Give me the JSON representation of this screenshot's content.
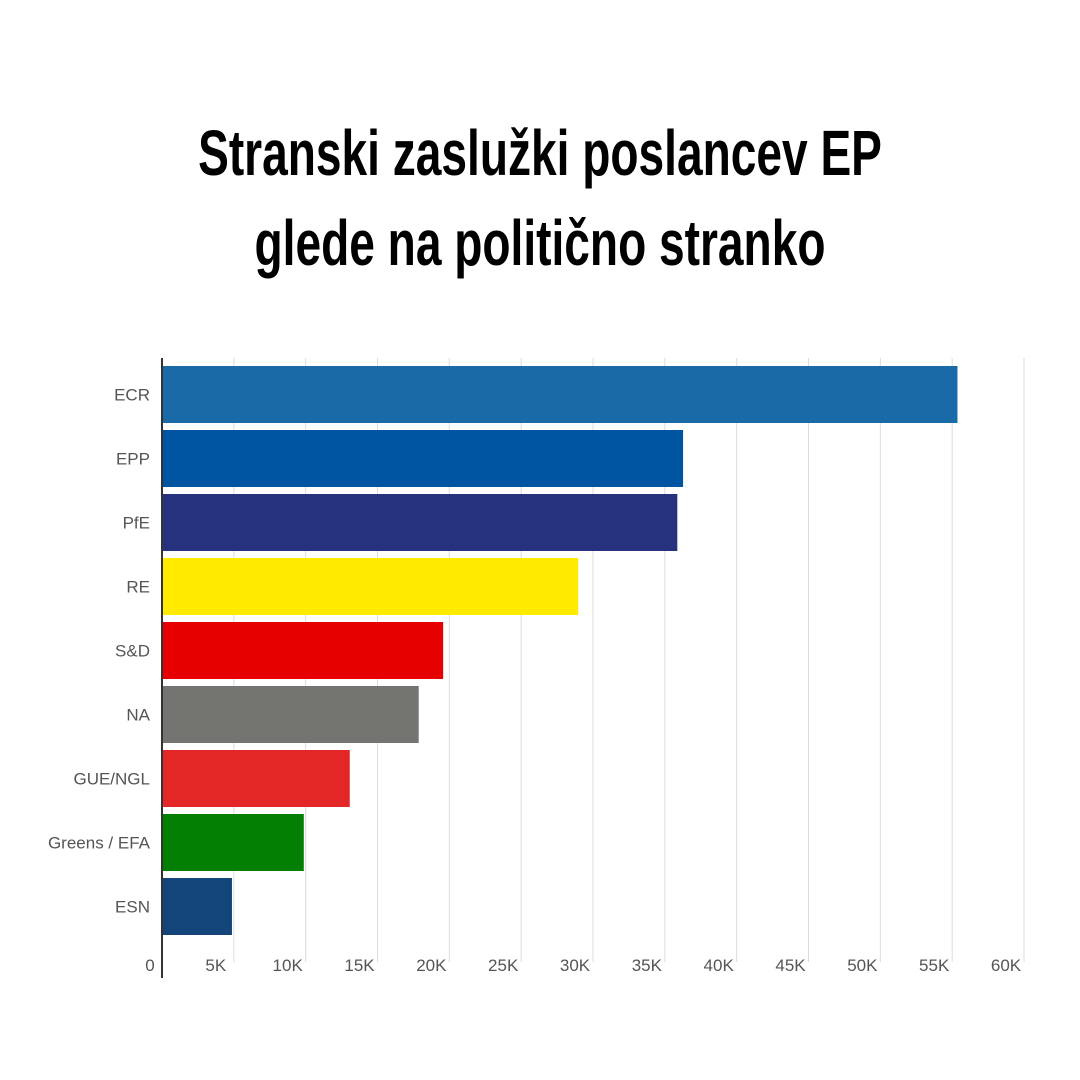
{
  "title_lines": [
    "Stranski zaslužki poslancev EP",
    "glede na politično stranko"
  ],
  "chart_data": {
    "type": "bar",
    "orientation": "horizontal",
    "categories": [
      "ECR",
      "EPP",
      "PfE",
      "RE",
      "S&D",
      "NA",
      "GUE/NGL",
      "Greens / EFA",
      "ESN"
    ],
    "values": [
      55300,
      36200,
      35800,
      28900,
      19500,
      17800,
      13000,
      9800,
      4800
    ],
    "colors": [
      "#1a6aa8",
      "#0055a2",
      "#26327e",
      "#ffea00",
      "#e60000",
      "#747570",
      "#e32727",
      "#038003",
      "#14457a"
    ],
    "x_ticks": [
      0,
      5000,
      10000,
      15000,
      20000,
      25000,
      30000,
      35000,
      40000,
      45000,
      50000,
      55000,
      60000
    ],
    "x_tick_labels": [
      "0",
      "5K",
      "10K",
      "15K",
      "20K",
      "25K",
      "30K",
      "35K",
      "40K",
      "45K",
      "50K",
      "55K",
      "60K"
    ],
    "xlim": [
      0,
      60000
    ],
    "grid": true,
    "title": "Stranski zaslužki poslancev EP glede na politično stranko"
  }
}
